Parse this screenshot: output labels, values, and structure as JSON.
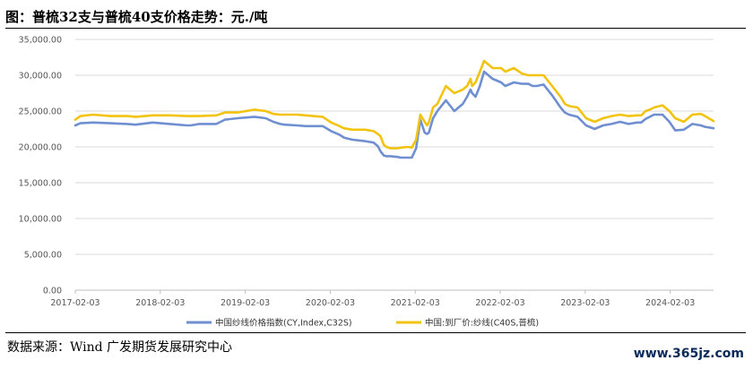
{
  "title": "图：普梳32支与普梳40支价格走势：元./吨",
  "source": "数据来源：Wind  广发期货发展研究中心",
  "watermark": "www.365jz.com",
  "chart_data": {
    "type": "line",
    "title": "普梳32支与普梳40支价格走势：元./吨",
    "ylim": [
      0,
      35000
    ],
    "yticks": [
      0,
      5000,
      10000,
      15000,
      20000,
      25000,
      30000,
      35000
    ],
    "ytick_labels": [
      "0.00",
      "5,000.00",
      "10,000.00",
      "15,000.00",
      "20,000.00",
      "25,000.00",
      "30,000.00",
      "35,000.00"
    ],
    "xlim": [
      2017.09,
      2024.6
    ],
    "xticks": [
      2017.09,
      2018.09,
      2019.09,
      2020.09,
      2021.09,
      2022.09,
      2023.09,
      2024.09
    ],
    "xtick_labels": [
      "2017-02-03",
      "2018-02-03",
      "2019-02-03",
      "2020-02-03",
      "2021-02-03",
      "2022-02-03",
      "2023-02-03",
      "2024-02-03"
    ],
    "grid": true,
    "legend_position": "bottom",
    "series": [
      {
        "name": "中国纱线价格指数(CY,Index,C32S)",
        "color": "#6f8fd0",
        "x": [
          2017.09,
          2017.15,
          2017.3,
          2017.5,
          2017.7,
          2017.8,
          2018.0,
          2018.2,
          2018.4,
          2018.45,
          2018.55,
          2018.75,
          2018.85,
          2019.0,
          2019.2,
          2019.33,
          2019.42,
          2019.5,
          2019.55,
          2019.7,
          2019.8,
          2020.0,
          2020.1,
          2020.2,
          2020.25,
          2020.35,
          2020.5,
          2020.6,
          2020.65,
          2020.68,
          2020.72,
          2020.75,
          2020.8,
          2020.88,
          2020.92,
          2021.0,
          2021.05,
          2021.1,
          2021.15,
          2021.2,
          2021.23,
          2021.25,
          2021.3,
          2021.35,
          2021.45,
          2021.55,
          2021.65,
          2021.7,
          2021.74,
          2021.76,
          2021.8,
          2021.85,
          2021.9,
          2022.0,
          2022.1,
          2022.15,
          2022.25,
          2022.35,
          2022.42,
          2022.47,
          2022.52,
          2022.6,
          2022.7,
          2022.8,
          2022.85,
          2022.9,
          2023.0,
          2023.1,
          2023.2,
          2023.3,
          2023.4,
          2023.5,
          2023.6,
          2023.7,
          2023.75,
          2023.8,
          2023.85,
          2023.9,
          2024.0,
          2024.08,
          2024.15,
          2024.25,
          2024.35,
          2024.45,
          2024.5,
          2024.6
        ],
        "y": [
          23000,
          23300,
          23400,
          23300,
          23200,
          23100,
          23400,
          23200,
          23000,
          23000,
          23200,
          23200,
          23800,
          24000,
          24200,
          24000,
          23500,
          23200,
          23100,
          23000,
          22900,
          22900,
          22200,
          21700,
          21300,
          21000,
          20800,
          20600,
          20100,
          19400,
          18800,
          18700,
          18700,
          18600,
          18500,
          18500,
          18500,
          19800,
          23800,
          22000,
          21800,
          22000,
          24000,
          25000,
          26500,
          25000,
          26000,
          27000,
          28000,
          27500,
          27000,
          28500,
          30500,
          29500,
          29000,
          28500,
          29000,
          28800,
          28800,
          28500,
          28500,
          28700,
          27200,
          25500,
          24800,
          24500,
          24200,
          23000,
          22500,
          23000,
          23200,
          23500,
          23200,
          23400,
          23400,
          23900,
          24200,
          24500,
          24500,
          23500,
          22300,
          22400,
          23200,
          23000,
          22800,
          22600
        ]
      },
      {
        "name": "中国:到厂价:纱线(C40S,普梳)",
        "color": "#f2c30f",
        "x": [
          2017.09,
          2017.15,
          2017.3,
          2017.5,
          2017.7,
          2017.8,
          2018.0,
          2018.2,
          2018.4,
          2018.45,
          2018.55,
          2018.75,
          2018.85,
          2019.0,
          2019.2,
          2019.33,
          2019.42,
          2019.5,
          2019.55,
          2019.7,
          2019.8,
          2020.0,
          2020.1,
          2020.2,
          2020.25,
          2020.35,
          2020.5,
          2020.6,
          2020.65,
          2020.68,
          2020.72,
          2020.75,
          2020.8,
          2020.88,
          2020.92,
          2021.0,
          2021.05,
          2021.1,
          2021.15,
          2021.2,
          2021.23,
          2021.25,
          2021.3,
          2021.35,
          2021.45,
          2021.55,
          2021.65,
          2021.7,
          2021.74,
          2021.76,
          2021.8,
          2021.85,
          2021.9,
          2022.0,
          2022.1,
          2022.15,
          2022.25,
          2022.35,
          2022.42,
          2022.47,
          2022.52,
          2022.6,
          2022.7,
          2022.8,
          2022.85,
          2022.9,
          2023.0,
          2023.1,
          2023.2,
          2023.3,
          2023.4,
          2023.5,
          2023.6,
          2023.7,
          2023.75,
          2023.8,
          2023.85,
          2023.9,
          2024.0,
          2024.08,
          2024.15,
          2024.25,
          2024.35,
          2024.45,
          2024.5,
          2024.6
        ],
        "y": [
          23800,
          24300,
          24500,
          24300,
          24300,
          24200,
          24400,
          24400,
          24300,
          24300,
          24300,
          24400,
          24800,
          24800,
          25200,
          25000,
          24600,
          24500,
          24500,
          24500,
          24400,
          24200,
          23400,
          22900,
          22600,
          22400,
          22400,
          22200,
          21800,
          21500,
          20300,
          20000,
          19800,
          19800,
          19900,
          20000,
          19900,
          21000,
          24500,
          23500,
          23000,
          23400,
          25500,
          26000,
          28500,
          27500,
          28000,
          28500,
          29500,
          28500,
          29000,
          30500,
          32000,
          31000,
          31000,
          30500,
          31000,
          30200,
          30000,
          30000,
          30000,
          30000,
          28500,
          27000,
          26000,
          25700,
          25500,
          24000,
          23500,
          24000,
          24300,
          24500,
          24300,
          24400,
          24400,
          25000,
          25200,
          25500,
          25800,
          25000,
          24000,
          23500,
          24500,
          24600,
          24300,
          23600
        ]
      }
    ]
  }
}
